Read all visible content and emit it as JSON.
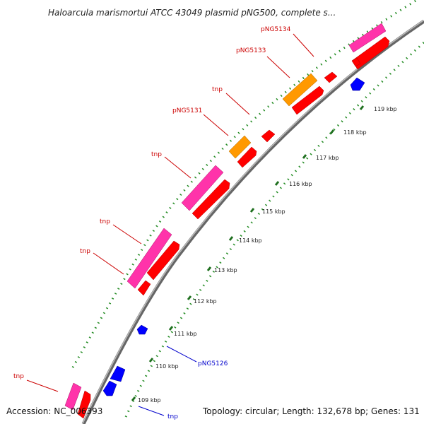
{
  "title": "Haloarcula marismortui ATCC 43049 plasmid pNG500, complete s...",
  "footer": {
    "accession": "Accession: NC_006393",
    "summary": "Topology: circular; Length: 132,678 bp; Genes: 131"
  },
  "colors": {
    "backbone": "#999999",
    "tick": "#228B22",
    "cds": "#ff0000",
    "tnp": "#ff33aa",
    "orange": "#ff9900",
    "reverse": "#0000ff",
    "label_red": "#cc0000",
    "label_blue": "#0000cc"
  },
  "ticks": [
    {
      "label": "109 kbp"
    },
    {
      "label": "110 kbp"
    },
    {
      "label": "111 kbp"
    },
    {
      "label": "112 kbp"
    },
    {
      "label": "113 kbp"
    },
    {
      "label": "114 kbp"
    },
    {
      "label": "115 kbp"
    },
    {
      "label": "116 kbp"
    },
    {
      "label": "117 kbp"
    },
    {
      "label": "118 kbp"
    },
    {
      "label": "119 kbp"
    }
  ],
  "gene_labels": [
    {
      "text": "pNG5134",
      "strand": "outer"
    },
    {
      "text": "pNG5133",
      "strand": "outer"
    },
    {
      "text": "tnp",
      "strand": "outer"
    },
    {
      "text": "pNG5131",
      "strand": "outer"
    },
    {
      "text": "tnp",
      "strand": "outer"
    },
    {
      "text": "tnp",
      "strand": "outer"
    },
    {
      "text": "tnp",
      "strand": "outer"
    },
    {
      "text": "tnp",
      "strand": "outer"
    },
    {
      "text": "pNG5126",
      "strand": "inner"
    },
    {
      "text": "tnp",
      "strand": "inner"
    }
  ]
}
